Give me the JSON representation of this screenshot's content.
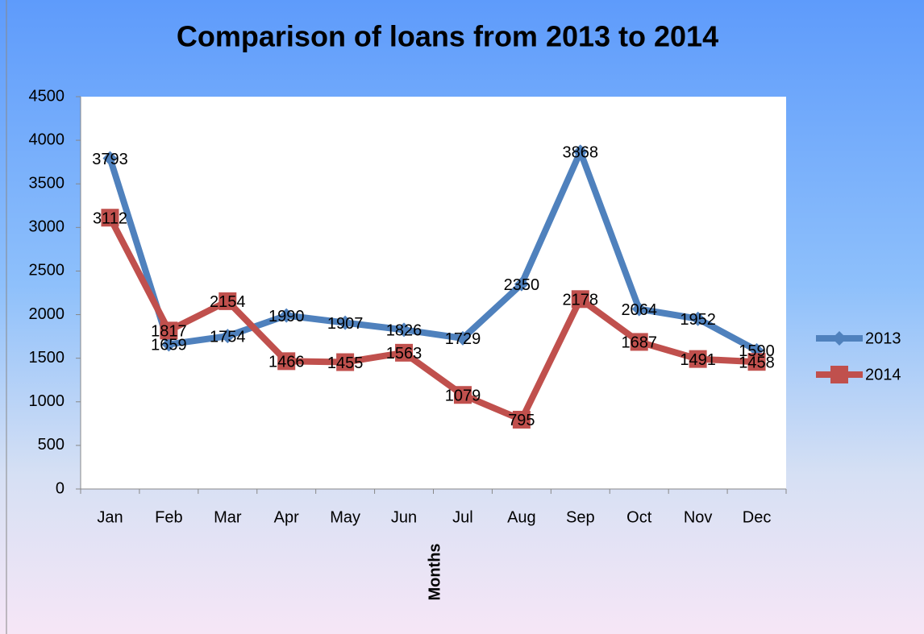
{
  "chart_data": {
    "type": "line",
    "title": "Comparison of loans from 2013 to 2014",
    "x_label": "Months",
    "categories": [
      "Jan",
      "Feb",
      "Mar",
      "Apr",
      "May",
      "Jun",
      "Jul",
      "Aug",
      "Sep",
      "Oct",
      "Nov",
      "Dec"
    ],
    "series": [
      {
        "name": "2013",
        "color": "#4f81bd",
        "marker": "diamond",
        "values": [
          3793,
          1659,
          1754,
          1990,
          1907,
          1826,
          1729,
          2350,
          3868,
          2064,
          1952,
          1590
        ]
      },
      {
        "name": "2014",
        "color": "#c0504d",
        "marker": "square",
        "values": [
          3112,
          1817,
          2154,
          1466,
          1455,
          1563,
          1079,
          795,
          2178,
          1687,
          1491,
          1458
        ]
      }
    ],
    "ylim": [
      0,
      4500
    ],
    "yticks": [
      0,
      500,
      1000,
      1500,
      2000,
      2500,
      3000,
      3500,
      4000,
      4500
    ],
    "grid": false,
    "legend": "right"
  }
}
